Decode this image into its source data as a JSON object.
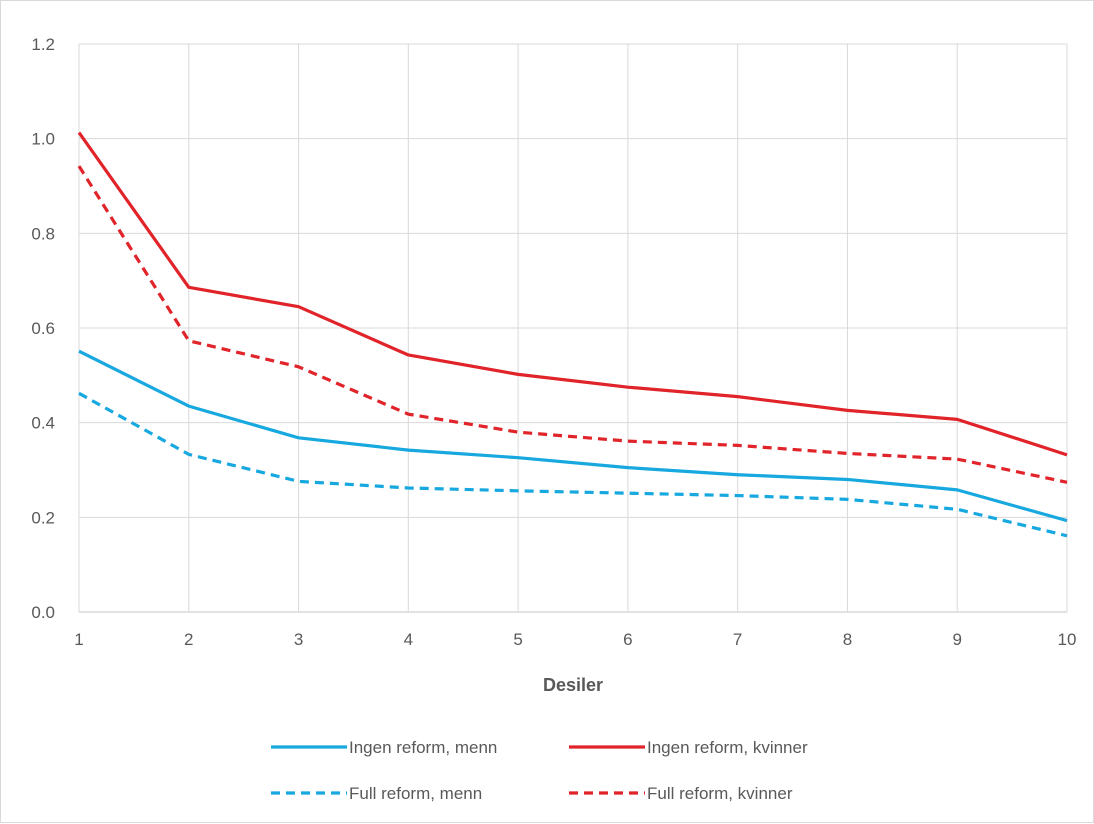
{
  "chart_data": {
    "type": "line",
    "xlabel": "Desiler",
    "ylabel": "",
    "x": [
      1,
      2,
      3,
      4,
      5,
      6,
      7,
      8,
      9,
      10
    ],
    "xlim": [
      1,
      10
    ],
    "ylim": [
      0,
      1.2
    ],
    "yticks": [
      "0.0",
      "0.2",
      "0.4",
      "0.6",
      "0.8",
      "1.0",
      "1.2"
    ],
    "xticks": [
      "1",
      "2",
      "3",
      "4",
      "5",
      "6",
      "7",
      "8",
      "9",
      "10"
    ],
    "grid": "vertical and horizontal",
    "legend": "bottom",
    "series": [
      {
        "name": "Ingen reform, menn",
        "color": "#16a8df",
        "dash": "solid",
        "values": [
          0.551,
          0.435,
          0.368,
          0.342,
          0.326,
          0.305,
          0.29,
          0.28,
          0.258,
          0.193
        ]
      },
      {
        "name": "Ingen reform, kvinner",
        "color": "#e1232a",
        "dash": "solid",
        "values": [
          1.013,
          0.686,
          0.645,
          0.543,
          0.502,
          0.475,
          0.455,
          0.426,
          0.407,
          0.332
        ]
      },
      {
        "name": "Full reform, menn",
        "color": "#16a8df",
        "dash": "dashed",
        "values": [
          0.462,
          0.333,
          0.276,
          0.262,
          0.256,
          0.251,
          0.246,
          0.238,
          0.217,
          0.161
        ]
      },
      {
        "name": "Full reform, kvinner",
        "color": "#e1232a",
        "dash": "dashed",
        "values": [
          0.942,
          0.573,
          0.518,
          0.418,
          0.38,
          0.361,
          0.352,
          0.335,
          0.323,
          0.274
        ]
      }
    ]
  }
}
